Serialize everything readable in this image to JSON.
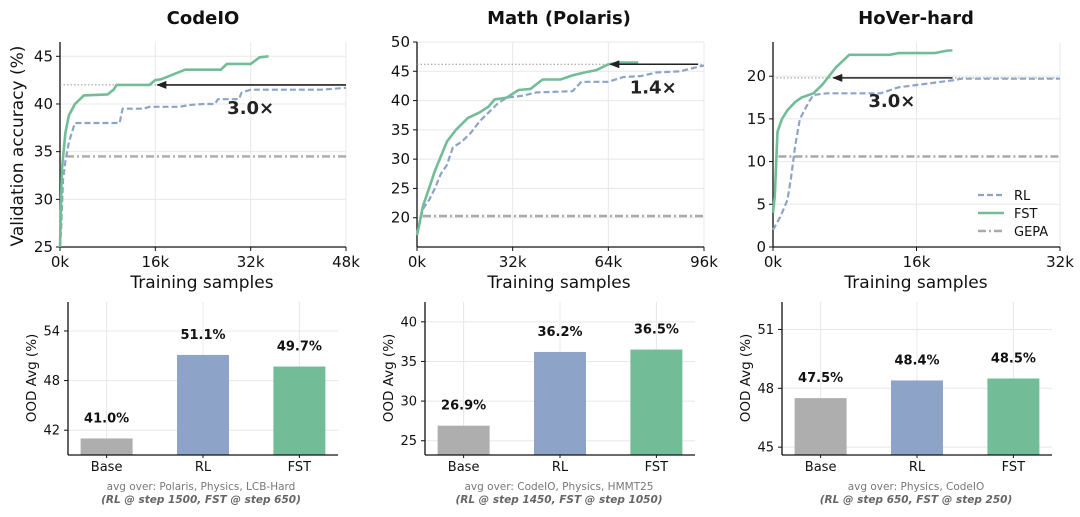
{
  "colors": {
    "rl": "#8da4c8",
    "fst": "#72bd98",
    "gepa": "#a9a9a9",
    "base": "#aeaeae",
    "grid": "#e8e8e8",
    "arrow": "#222222"
  },
  "legend": {
    "position": "lower-right of third line panel",
    "items": [
      "RL",
      "FST",
      "GEPA"
    ]
  },
  "chart_data": [
    {
      "type": "line",
      "title": "CodeIO",
      "xlabel": "Training samples",
      "ylabel": "Validation accuracy (%)",
      "xlim": [
        0,
        48000
      ],
      "ylim": [
        25,
        46.5
      ],
      "xticks": [
        0,
        16000,
        32000,
        48000
      ],
      "xticklabels": [
        "0k",
        "16k",
        "32k",
        "48k"
      ],
      "yticks": [
        25,
        30,
        35,
        40,
        45
      ],
      "yticklabels": [
        "25",
        "30",
        "35",
        "40",
        "45"
      ],
      "annotation": {
        "text": "3.0×",
        "level": 42,
        "from_x": 48000,
        "to_x": 16000
      },
      "series": [
        {
          "name": "RL",
          "style": "dashed",
          "points": [
            [
              0,
              25
            ],
            [
              200,
              27
            ],
            [
              500,
              32
            ],
            [
              900,
              34
            ],
            [
              1500,
              36
            ],
            [
              2500,
              38
            ],
            [
              5500,
              38
            ],
            [
              6000,
              38
            ],
            [
              10000,
              38
            ],
            [
              10500,
              39.5
            ],
            [
              14000,
              39.5
            ],
            [
              15000,
              39.7
            ],
            [
              20000,
              39.7
            ],
            [
              22000,
              39.9
            ],
            [
              24000,
              40
            ],
            [
              26000,
              40
            ],
            [
              26500,
              40.5
            ],
            [
              30000,
              40.5
            ],
            [
              30500,
              41.2
            ],
            [
              32000,
              41.5
            ],
            [
              36000,
              41.5
            ],
            [
              44000,
              41.5
            ],
            [
              48000,
              41.7
            ]
          ]
        },
        {
          "name": "FST",
          "style": "solid",
          "points": [
            [
              0,
              25
            ],
            [
              300,
              33
            ],
            [
              900,
              37
            ],
            [
              1500,
              38.8
            ],
            [
              2500,
              40
            ],
            [
              3500,
              40.6
            ],
            [
              4000,
              40.9
            ],
            [
              8000,
              41
            ],
            [
              9000,
              41.5
            ],
            [
              9500,
              42
            ],
            [
              15000,
              42
            ],
            [
              16000,
              42.5
            ],
            [
              17000,
              42.6
            ],
            [
              21000,
              43.6
            ],
            [
              27000,
              43.6
            ],
            [
              28000,
              44.2
            ],
            [
              32000,
              44.2
            ],
            [
              33500,
              44.9
            ],
            [
              35000,
              45
            ]
          ]
        },
        {
          "name": "GEPA",
          "style": "dashdot",
          "points": [
            [
              1000,
              34.5
            ],
            [
              48000,
              34.5
            ]
          ]
        }
      ]
    },
    {
      "type": "line",
      "title": "Math (Polaris)",
      "xlabel": "Training samples",
      "ylabel": "",
      "xlim": [
        0,
        96000
      ],
      "ylim": [
        15,
        50
      ],
      "xticks": [
        0,
        32000,
        64000,
        96000
      ],
      "xticklabels": [
        "0k",
        "32k",
        "64k",
        "96k"
      ],
      "yticks": [
        20,
        25,
        30,
        35,
        40,
        45,
        50
      ],
      "yticklabels": [
        "20",
        "25",
        "30",
        "35",
        "40",
        "45",
        "50"
      ],
      "annotation": {
        "text": "1.4×",
        "level": 46.2,
        "from_x": 94000,
        "to_x": 64000
      },
      "series": [
        {
          "name": "RL",
          "style": "dashed",
          "points": [
            [
              0,
              17
            ],
            [
              2000,
              21.5
            ],
            [
              4000,
              23
            ],
            [
              6000,
              25
            ],
            [
              8000,
              27.5
            ],
            [
              10000,
              29
            ],
            [
              12000,
              32
            ],
            [
              15000,
              33
            ],
            [
              18000,
              34.5
            ],
            [
              21000,
              36.5
            ],
            [
              24000,
              38
            ],
            [
              27000,
              39.5
            ],
            [
              30000,
              40.5
            ],
            [
              35000,
              40.8
            ],
            [
              40000,
              41.4
            ],
            [
              52000,
              41.6
            ],
            [
              55000,
              43.2
            ],
            [
              64000,
              43.2
            ],
            [
              69000,
              44
            ],
            [
              75000,
              44.2
            ],
            [
              80000,
              44.8
            ],
            [
              88000,
              45
            ],
            [
              96000,
              46
            ]
          ]
        },
        {
          "name": "FST",
          "style": "solid",
          "points": [
            [
              0,
              17
            ],
            [
              2000,
              22
            ],
            [
              4000,
              25
            ],
            [
              6000,
              28
            ],
            [
              8000,
              30.5
            ],
            [
              10000,
              33
            ],
            [
              13000,
              35
            ],
            [
              17000,
              37
            ],
            [
              21000,
              38
            ],
            [
              24000,
              39
            ],
            [
              26000,
              40.2
            ],
            [
              30000,
              40.5
            ],
            [
              34000,
              41.8
            ],
            [
              38000,
              42
            ],
            [
              42000,
              43.6
            ],
            [
              48000,
              43.6
            ],
            [
              52000,
              44.3
            ],
            [
              56000,
              44.8
            ],
            [
              60000,
              45.2
            ],
            [
              64000,
              46.2
            ],
            [
              68000,
              46.5
            ],
            [
              74000,
              46.5
            ]
          ]
        },
        {
          "name": "GEPA",
          "style": "dashdot",
          "points": [
            [
              2000,
              20.3
            ],
            [
              96000,
              20.3
            ]
          ]
        }
      ]
    },
    {
      "type": "line",
      "title": "HoVer-hard",
      "xlabel": "Training samples",
      "ylabel": "",
      "xlim": [
        0,
        32000
      ],
      "ylim": [
        0,
        24
      ],
      "xticks": [
        0,
        16000,
        32000
      ],
      "xticklabels": [
        "0k",
        "16k",
        "32k"
      ],
      "yticks": [
        0,
        5,
        10,
        15,
        20
      ],
      "yticklabels": [
        "0",
        "5",
        "10",
        "15",
        "20"
      ],
      "annotation": {
        "text": "3.0×",
        "level": 19.8,
        "from_x": 20000,
        "to_x": 6500
      },
      "series": [
        {
          "name": "RL",
          "style": "dashed",
          "points": [
            [
              0,
              2
            ],
            [
              800,
              3.5
            ],
            [
              1600,
              5.5
            ],
            [
              2000,
              8
            ],
            [
              2500,
              12
            ],
            [
              3000,
              15
            ],
            [
              3500,
              16
            ],
            [
              4000,
              17
            ],
            [
              4500,
              17.8
            ],
            [
              6000,
              18
            ],
            [
              12000,
              18
            ],
            [
              14000,
              18.7
            ],
            [
              20000,
              19.5
            ],
            [
              21000,
              19.7
            ],
            [
              32000,
              19.7
            ]
          ]
        },
        {
          "name": "FST",
          "style": "solid",
          "points": [
            [
              0,
              4
            ],
            [
              200,
              6
            ],
            [
              500,
              13.5
            ],
            [
              1000,
              15
            ],
            [
              1600,
              16
            ],
            [
              2500,
              17
            ],
            [
              3200,
              17.5
            ],
            [
              4500,
              18
            ],
            [
              5500,
              19
            ],
            [
              7000,
              21
            ],
            [
              8500,
              22.5
            ],
            [
              13000,
              22.5
            ],
            [
              14000,
              22.7
            ],
            [
              18000,
              22.7
            ],
            [
              19500,
              23
            ],
            [
              20000,
              23
            ]
          ]
        },
        {
          "name": "GEPA",
          "style": "dashdot",
          "points": [
            [
              600,
              10.6
            ],
            [
              32000,
              10.6
            ]
          ]
        }
      ]
    },
    {
      "type": "bar",
      "ylabel": "OOD Avg (%)",
      "categories": [
        "Base",
        "RL",
        "FST"
      ],
      "values": [
        41.0,
        51.1,
        49.7
      ],
      "value_labels": [
        "41.0%",
        "51.1%",
        "49.7%"
      ],
      "ylim": [
        39,
        57.5
      ],
      "yticks": [
        42,
        48,
        54
      ],
      "yticklabels": [
        "42",
        "48",
        "54"
      ],
      "note": "avg over: Polaris, Physics, LCB-Hard",
      "note_steps": "(RL @ step 1500, FST @ step 650)"
    },
    {
      "type": "bar",
      "ylabel": "OOD Avg (%)",
      "categories": [
        "Base",
        "RL",
        "FST"
      ],
      "values": [
        26.9,
        36.2,
        36.5
      ],
      "value_labels": [
        "26.9%",
        "36.2%",
        "36.5%"
      ],
      "ylim": [
        23.2,
        42.5
      ],
      "yticks": [
        25,
        30,
        35,
        40
      ],
      "yticklabels": [
        "25",
        "30",
        "35",
        "40"
      ],
      "note": "avg over: CodeIO, Physics, HMMT25",
      "note_steps": "(RL @ step 1450, FST @ step 1050)"
    },
    {
      "type": "bar",
      "ylabel": "OOD Avg (%)",
      "categories": [
        "Base",
        "RL",
        "FST"
      ],
      "values": [
        47.5,
        48.4,
        48.5
      ],
      "value_labels": [
        "47.5%",
        "48.4%",
        "48.5%"
      ],
      "ylim": [
        44.6,
        52.4
      ],
      "yticks": [
        45,
        48,
        51
      ],
      "yticklabels": [
        "45",
        "48",
        "51"
      ],
      "note": "avg over: Physics, CodeIO",
      "note_steps": "(RL @ step 650, FST @ step 250)"
    }
  ]
}
